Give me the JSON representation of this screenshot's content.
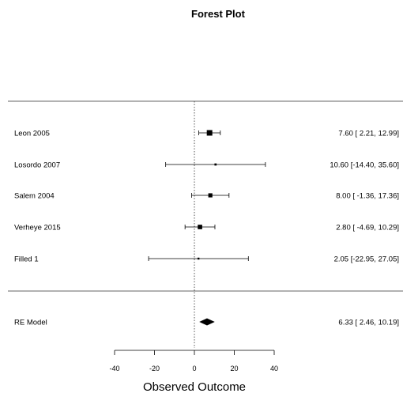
{
  "chart_data": {
    "type": "forest",
    "title": "Forest Plot",
    "xlabel": "Observed Outcome",
    "xlim": [
      -40,
      40
    ],
    "xticks": [
      -40,
      -20,
      0,
      20,
      40
    ],
    "reference_line": 0,
    "studies": [
      {
        "label": "Leon 2005",
        "estimate": 7.6,
        "ci_low": 2.21,
        "ci_high": 12.99,
        "ci_text": "7.60 [ 2.21, 12.99]",
        "weight": 1.0
      },
      {
        "label": "Losordo 2007",
        "estimate": 10.6,
        "ci_low": -14.4,
        "ci_high": 35.6,
        "ci_text": "10.60 [-14.40, 35.60]",
        "weight": 0.15
      },
      {
        "label": "Salem 2004",
        "estimate": 8.0,
        "ci_low": -1.36,
        "ci_high": 17.36,
        "ci_text": "8.00 [ -1.36, 17.36]",
        "weight": 0.55
      },
      {
        "label": "Verheye 2015",
        "estimate": 2.8,
        "ci_low": -4.69,
        "ci_high": 10.29,
        "ci_text": "2.80 [ -4.69, 10.29]",
        "weight": 0.65
      },
      {
        "label": "Filled 1",
        "estimate": 2.05,
        "ci_low": -22.95,
        "ci_high": 27.05,
        "ci_text": "2.05 [-22.95, 27.05]",
        "weight": 0.12
      }
    ],
    "summary": {
      "label": "RE Model",
      "estimate": 6.33,
      "ci_low": 2.46,
      "ci_high": 10.19,
      "ci_text": "6.33 [ 2.46, 10.19]"
    }
  }
}
